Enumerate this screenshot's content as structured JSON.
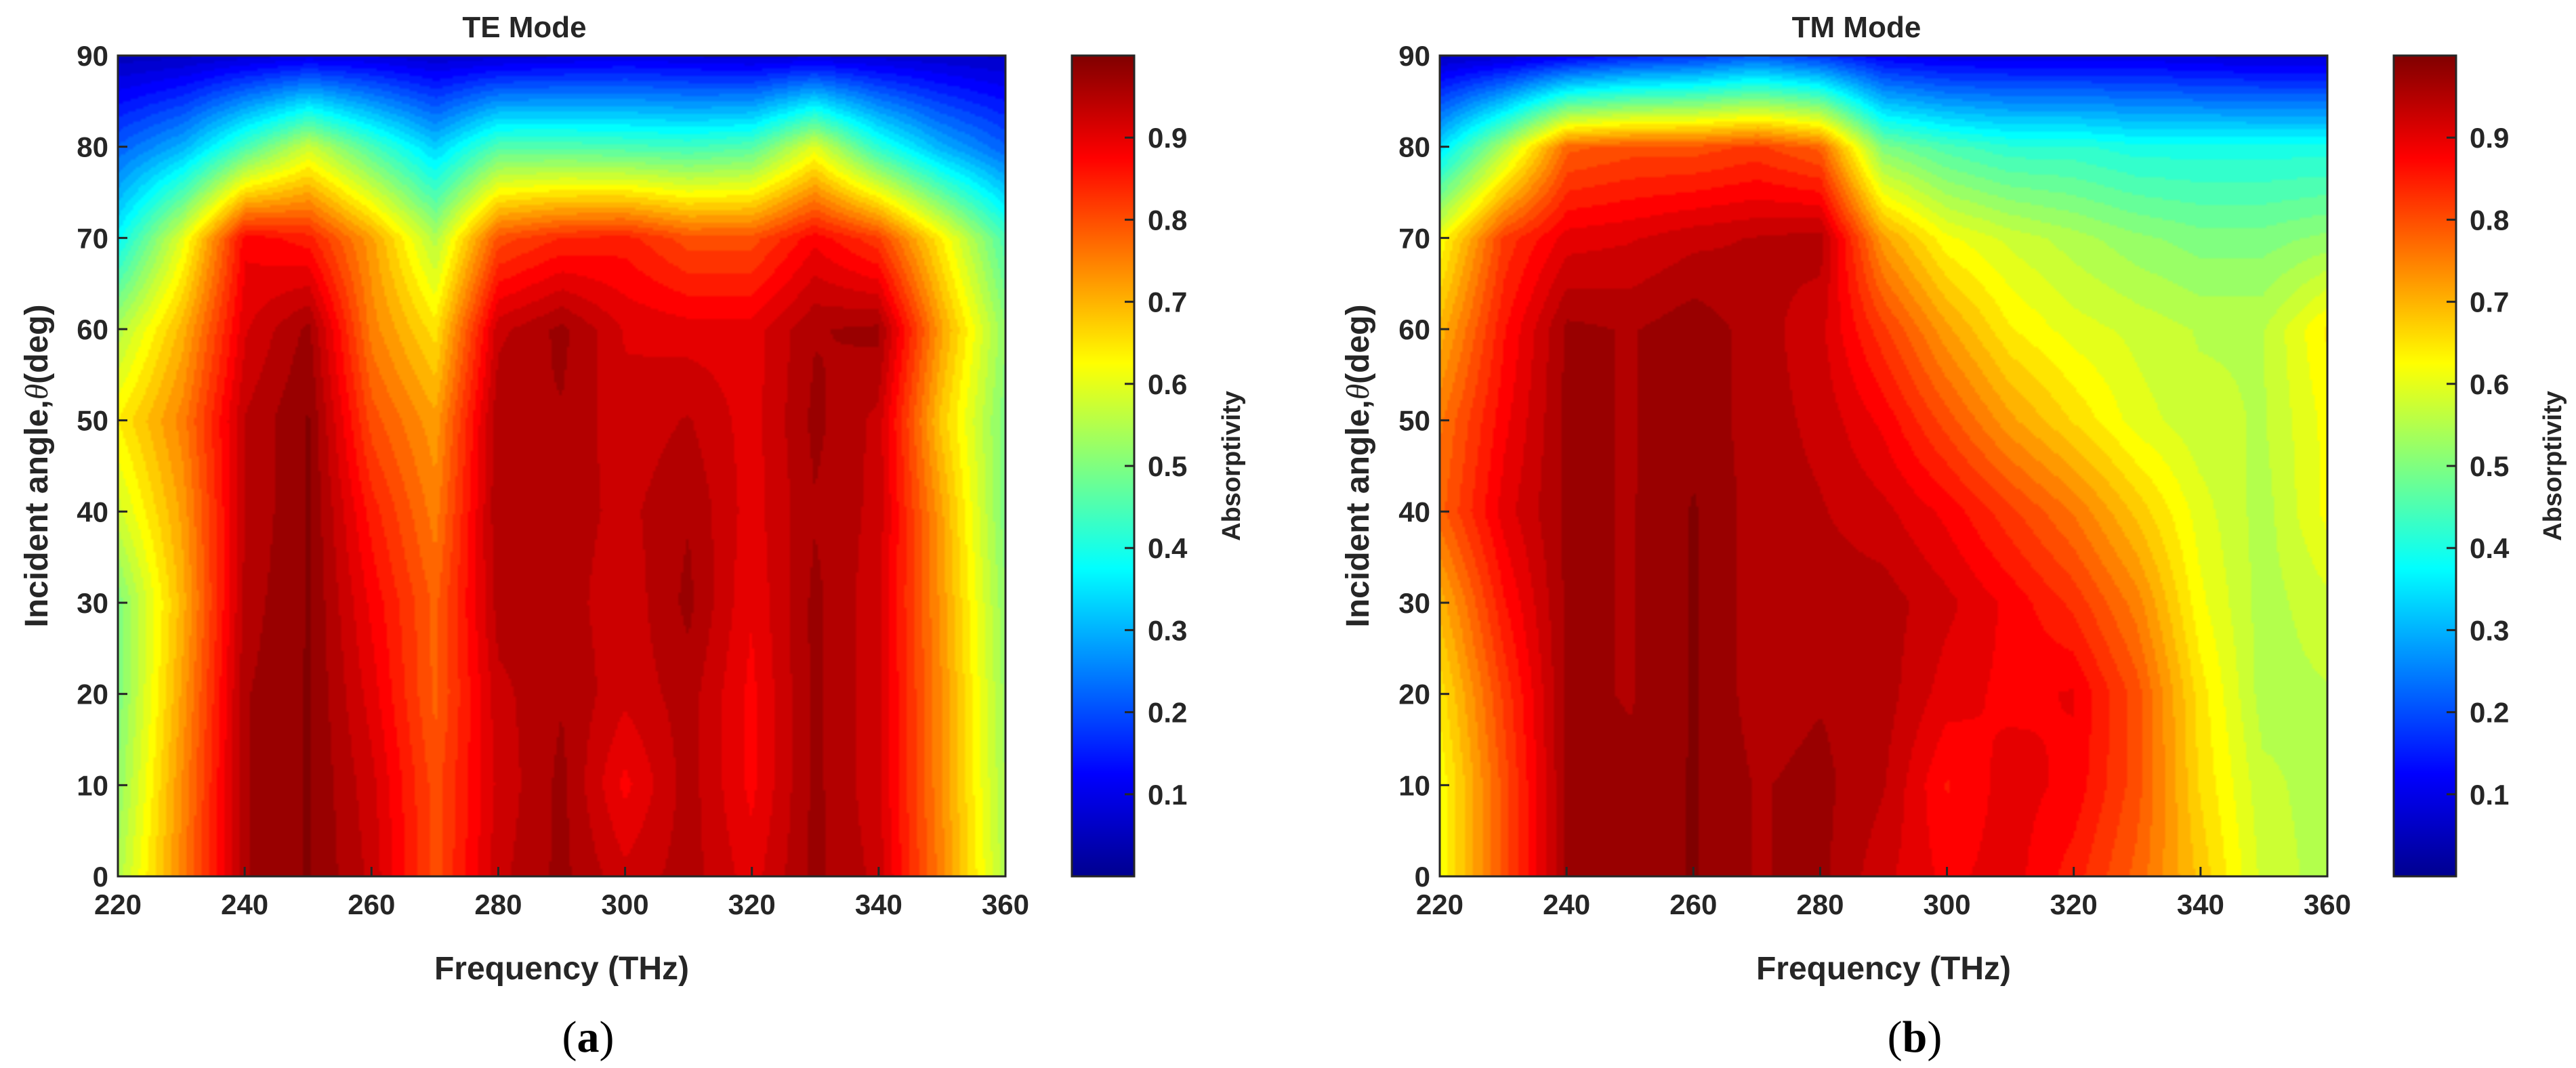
{
  "chart_data": [
    {
      "id": "a",
      "type": "heatmap",
      "title": "TE Mode",
      "subcaption_letter": "a",
      "xlabel": "Frequency (THz)",
      "ylabel_prefix": "Incident angle,",
      "ylabel_symbol": "θ",
      "ylabel_suffix": "(deg)",
      "xlim": [
        220,
        360
      ],
      "ylim": [
        0,
        90
      ],
      "xticks": [
        220,
        240,
        260,
        280,
        300,
        320,
        340,
        360
      ],
      "yticks": [
        0,
        10,
        20,
        30,
        40,
        50,
        60,
        70,
        80,
        90
      ],
      "colorbar": {
        "label": "Absorptivity",
        "range": [
          0.0,
          1.0
        ],
        "ticks": [
          0.1,
          0.2,
          0.3,
          0.4,
          0.5,
          0.6,
          0.7,
          0.8,
          0.9
        ],
        "colormap": "jet"
      },
      "grid": {
        "x": [
          220,
          230,
          240,
          250,
          260,
          270,
          280,
          290,
          300,
          310,
          320,
          330,
          340,
          350,
          360
        ],
        "y": [
          0,
          10,
          20,
          30,
          40,
          50,
          60,
          70,
          80,
          90
        ],
        "z": [
          [
            0.55,
            0.75,
            0.96,
            0.99,
            0.93,
            0.8,
            0.93,
            0.97,
            0.92,
            0.95,
            0.9,
            0.97,
            0.93,
            0.75,
            0.55
          ],
          [
            0.52,
            0.74,
            0.96,
            0.99,
            0.92,
            0.8,
            0.92,
            0.97,
            0.88,
            0.95,
            0.88,
            0.97,
            0.92,
            0.74,
            0.54
          ],
          [
            0.5,
            0.72,
            0.96,
            0.99,
            0.9,
            0.78,
            0.93,
            0.96,
            0.92,
            0.95,
            0.88,
            0.97,
            0.92,
            0.74,
            0.53
          ],
          [
            0.5,
            0.7,
            0.95,
            0.99,
            0.88,
            0.78,
            0.95,
            0.95,
            0.92,
            0.97,
            0.89,
            0.97,
            0.92,
            0.73,
            0.52
          ],
          [
            0.58,
            0.72,
            0.94,
            0.99,
            0.85,
            0.75,
            0.96,
            0.95,
            0.93,
            0.96,
            0.9,
            0.96,
            0.93,
            0.72,
            0.5
          ],
          [
            0.64,
            0.75,
            0.94,
            0.99,
            0.8,
            0.72,
            0.96,
            0.96,
            0.92,
            0.94,
            0.9,
            0.97,
            0.93,
            0.68,
            0.5
          ],
          [
            0.55,
            0.7,
            0.91,
            0.97,
            0.75,
            0.65,
            0.93,
            0.97,
            0.91,
            0.9,
            0.9,
            0.96,
            0.97,
            0.72,
            0.52
          ],
          [
            0.38,
            0.6,
            0.88,
            0.85,
            0.72,
            0.55,
            0.8,
            0.84,
            0.85,
            0.8,
            0.8,
            0.88,
            0.82,
            0.64,
            0.45
          ],
          [
            0.22,
            0.3,
            0.45,
            0.58,
            0.45,
            0.33,
            0.46,
            0.46,
            0.45,
            0.44,
            0.46,
            0.6,
            0.42,
            0.3,
            0.22
          ],
          [
            0.05,
            0.06,
            0.08,
            0.1,
            0.09,
            0.07,
            0.08,
            0.09,
            0.1,
            0.09,
            0.08,
            0.09,
            0.08,
            0.07,
            0.06
          ]
        ]
      }
    },
    {
      "id": "b",
      "type": "heatmap",
      "title": "TM Mode",
      "subcaption_letter": "b",
      "xlabel": "Frequency (THz)",
      "ylabel_prefix": "Incident angle,",
      "ylabel_symbol": "θ",
      "ylabel_suffix": "(deg)",
      "xlim": [
        220,
        360
      ],
      "ylim": [
        0,
        90
      ],
      "xticks": [
        220,
        240,
        260,
        280,
        300,
        320,
        340,
        360
      ],
      "yticks": [
        0,
        10,
        20,
        30,
        40,
        50,
        60,
        70,
        80,
        90
      ],
      "colorbar": {
        "label": "Absorptivity",
        "range": [
          0.0,
          1.0
        ],
        "ticks": [
          0.1,
          0.2,
          0.3,
          0.4,
          0.5,
          0.6,
          0.7,
          0.8,
          0.9
        ],
        "colormap": "jet"
      },
      "grid": {
        "x": [
          220,
          230,
          240,
          250,
          260,
          270,
          280,
          290,
          300,
          310,
          320,
          330,
          340,
          350,
          360
        ],
        "y": [
          0,
          10,
          20,
          30,
          40,
          50,
          60,
          70,
          80,
          90
        ],
        "z": [
          [
            0.62,
            0.8,
            0.97,
            0.97,
            0.99,
            0.96,
            0.97,
            0.92,
            0.88,
            0.9,
            0.85,
            0.78,
            0.68,
            0.58,
            0.55
          ],
          [
            0.62,
            0.8,
            0.97,
            0.97,
            0.99,
            0.96,
            0.97,
            0.94,
            0.86,
            0.9,
            0.88,
            0.8,
            0.66,
            0.57,
            0.55
          ],
          [
            0.65,
            0.82,
            0.97,
            0.96,
            0.99,
            0.95,
            0.96,
            0.95,
            0.9,
            0.88,
            0.89,
            0.8,
            0.65,
            0.55,
            0.56
          ],
          [
            0.7,
            0.86,
            0.97,
            0.96,
            0.99,
            0.95,
            0.95,
            0.95,
            0.92,
            0.88,
            0.83,
            0.75,
            0.62,
            0.55,
            0.58
          ],
          [
            0.78,
            0.9,
            0.97,
            0.96,
            0.99,
            0.95,
            0.94,
            0.92,
            0.88,
            0.82,
            0.76,
            0.68,
            0.6,
            0.55,
            0.62
          ],
          [
            0.76,
            0.88,
            0.97,
            0.96,
            0.98,
            0.95,
            0.93,
            0.88,
            0.8,
            0.72,
            0.66,
            0.6,
            0.57,
            0.56,
            0.62
          ],
          [
            0.7,
            0.86,
            0.97,
            0.96,
            0.98,
            0.95,
            0.92,
            0.82,
            0.72,
            0.64,
            0.6,
            0.58,
            0.56,
            0.56,
            0.64
          ],
          [
            0.62,
            0.82,
            0.9,
            0.91,
            0.93,
            0.94,
            0.95,
            0.72,
            0.62,
            0.58,
            0.55,
            0.52,
            0.5,
            0.5,
            0.52
          ],
          [
            0.35,
            0.55,
            0.78,
            0.8,
            0.8,
            0.82,
            0.78,
            0.5,
            0.45,
            0.42,
            0.42,
            0.4,
            0.4,
            0.4,
            0.4
          ],
          [
            0.06,
            0.08,
            0.12,
            0.16,
            0.18,
            0.22,
            0.18,
            0.12,
            0.1,
            0.1,
            0.1,
            0.1,
            0.09,
            0.08,
            0.08
          ]
        ]
      }
    }
  ]
}
